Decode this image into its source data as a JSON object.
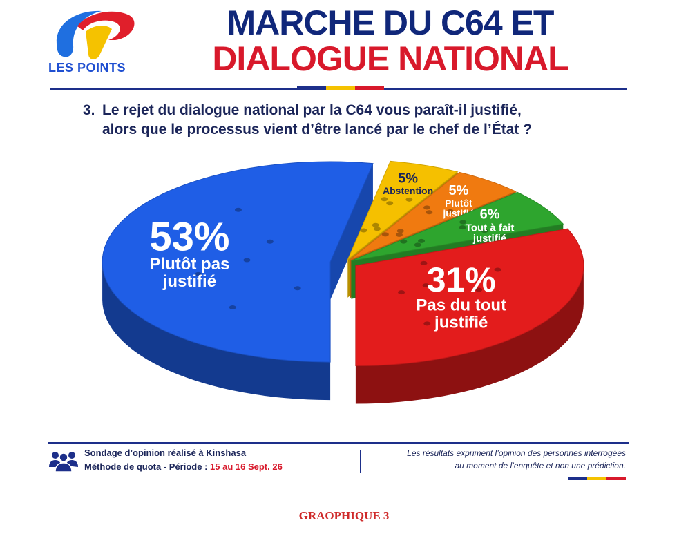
{
  "brand": {
    "logo_text": "LES POINTS",
    "colors": {
      "navy": "#10277a",
      "red": "#d8192b",
      "blue": "#1f4fd1",
      "yellow": "#f5c200"
    }
  },
  "header": {
    "title_line1": "MARCHE DU C64 ET",
    "title_line2": "DIALOGUE NATIONAL"
  },
  "question": {
    "number": "3.",
    "line1": "Le rejet du dialogue national par la C64 vous paraît-il justifié,",
    "line2": "alors que le processus vient d’être lancé par le chef de l’État ?"
  },
  "chart_data": {
    "type": "pie",
    "title": "",
    "slices": [
      {
        "label_lines": [
          "Plutôt pas",
          "justifié"
        ],
        "value": 53,
        "value_label": "53%",
        "color": "#1f5ee6"
      },
      {
        "label_lines": [
          "Abstention"
        ],
        "value": 5,
        "value_label": "5%",
        "color": "#f5c000"
      },
      {
        "label_lines": [
          "Plutôt",
          "justifié"
        ],
        "value": 5,
        "value_label": "5%",
        "color": "#f07a10"
      },
      {
        "label_lines": [
          "Tout à fait",
          "justifié"
        ],
        "value": 6,
        "value_label": "6%",
        "color": "#2ea52e"
      },
      {
        "label_lines": [
          "Pas du tout",
          "justifié"
        ],
        "value": 31,
        "value_label": "31%",
        "color": "#e31c1c"
      }
    ]
  },
  "footer": {
    "survey_line1": "Sondage d’opinion réalisé à Kinshasa",
    "survey_method": "Méthode de quota - Période : ",
    "survey_dates": "15 au 16 Sept. 26",
    "disclaimer_line1": "Les résultats expriment l’opinion des personnes interrogées",
    "disclaimer_line2": "au moment de l’enquête et non une prédiction."
  },
  "caption": "GRAOPHIQUE 3"
}
